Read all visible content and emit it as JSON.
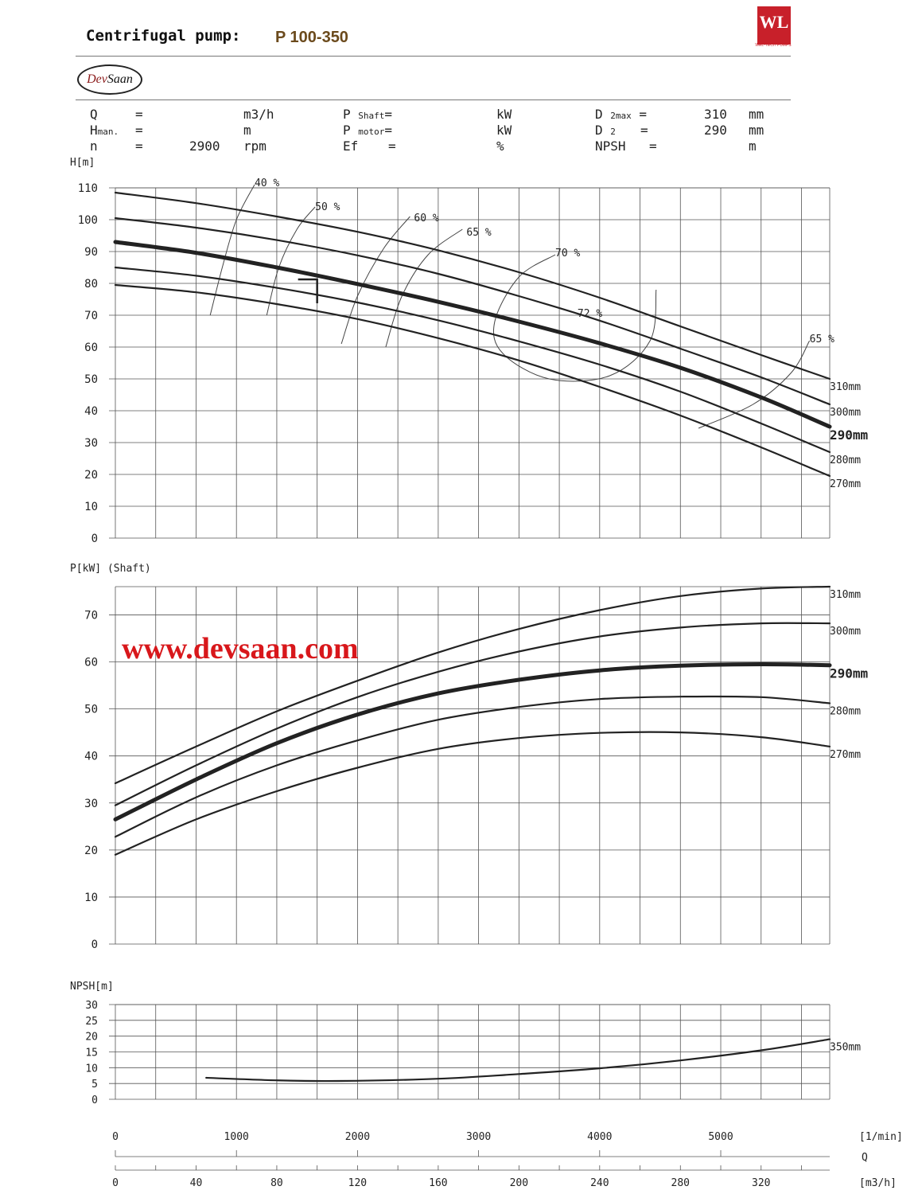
{
  "header": {
    "title_label": "Centrifugal pump:",
    "model": "P 100-350",
    "brand_mark": "WL",
    "brand_caption": "WEL-TECH PUMPS",
    "dev_logo_dev": "Dev",
    "dev_logo_saan": "Saan",
    "watermark": "www.devsaan.com"
  },
  "params": {
    "q": {
      "label": "Q",
      "eq": "=",
      "value": "",
      "unit": "m3/h"
    },
    "h": {
      "label": "H",
      "sub": "man.",
      "eq": "=",
      "value": "",
      "unit": "m"
    },
    "n": {
      "label": "n",
      "eq": "=",
      "value": "2900",
      "unit": "rpm"
    },
    "p_shaft": {
      "label": "P",
      "sub": "Shaft",
      "eq": "=",
      "value": "",
      "unit": "kW"
    },
    "p_motor": {
      "label": "P",
      "sub": "motor",
      "eq": "=",
      "value": "",
      "unit": "kW"
    },
    "ef": {
      "label": "Ef",
      "eq": "=",
      "value": "",
      "unit": "%"
    },
    "d2max": {
      "label": "D",
      "sup": "2max",
      "eq": "=",
      "value": "310",
      "unit": "mm"
    },
    "d2": {
      "label": "D",
      "sub": "2",
      "eq": "=",
      "value": "290",
      "unit": "mm"
    },
    "npsh": {
      "label": "NPSH",
      "eq": "=",
      "value": "",
      "unit": "m"
    }
  },
  "colors": {
    "ink": "#222222",
    "grid": "#555555",
    "watermark": "#d8171b",
    "brand": "#c8202a",
    "model": "#6b4a1c"
  },
  "chart_data": [
    {
      "type": "line",
      "name": "head",
      "ylabel": "H[m]",
      "xlim": [
        0,
        354
      ],
      "ylim": [
        0,
        110
      ],
      "yticks": [
        0,
        10,
        20,
        30,
        40,
        50,
        60,
        70,
        80,
        90,
        100,
        110
      ],
      "grid": true,
      "series": [
        {
          "name": "310mm",
          "bold": false,
          "x": [
            0,
            40,
            80,
            120,
            160,
            200,
            240,
            280,
            320,
            354
          ],
          "y": [
            108.5,
            105.2,
            101.0,
            96.2,
            90.4,
            83.5,
            75.5,
            66.5,
            57.5,
            50.0
          ]
        },
        {
          "name": "300mm",
          "bold": false,
          "x": [
            0,
            40,
            80,
            120,
            160,
            200,
            240,
            280,
            320,
            354
          ],
          "y": [
            100.5,
            97.5,
            93.6,
            88.8,
            83.0,
            76.0,
            68.3,
            59.5,
            50.5,
            42.0
          ]
        },
        {
          "name": "290mm",
          "bold": true,
          "x": [
            0,
            40,
            80,
            120,
            160,
            200,
            240,
            280,
            320,
            354
          ],
          "y": [
            93.0,
            89.6,
            85.0,
            79.8,
            74.2,
            68.0,
            61.2,
            53.5,
            44.2,
            35.0
          ]
        },
        {
          "name": "280mm",
          "bold": false,
          "x": [
            0,
            40,
            80,
            120,
            160,
            200,
            240,
            280,
            320,
            354
          ],
          "y": [
            85.0,
            82.4,
            78.6,
            74.0,
            68.4,
            61.8,
            54.5,
            46.0,
            36.0,
            27.0
          ]
        },
        {
          "name": "270mm",
          "bold": false,
          "x": [
            0,
            40,
            80,
            120,
            160,
            200,
            240,
            280,
            320,
            354
          ],
          "y": [
            79.5,
            77.2,
            73.5,
            68.8,
            62.8,
            55.8,
            47.5,
            38.5,
            28.5,
            19.5
          ]
        }
      ],
      "efficiency_labels": [
        {
          "text": "40 %",
          "x": 69,
          "y": 110.5
        },
        {
          "text": "50 %",
          "x": 99,
          "y": 103.0
        },
        {
          "text": "60 %",
          "x": 148,
          "y": 99.5
        },
        {
          "text": "65 %",
          "x": 174,
          "y": 95.0
        },
        {
          "text": "70 %",
          "x": 218,
          "y": 88.5
        },
        {
          "text": "72 %",
          "x": 229,
          "y": 69.5
        },
        {
          "text": "65 %",
          "x": 344,
          "y": 61.5
        }
      ],
      "efficiency_contours": [
        {
          "x": [
            47,
            53,
            60,
            69
          ],
          "y": [
            70,
            85,
            100,
            111
          ]
        },
        {
          "x": [
            75,
            81,
            90,
            99
          ],
          "y": [
            70,
            85,
            97,
            104
          ]
        },
        {
          "x": [
            112,
            120,
            133,
            146
          ],
          "y": [
            61,
            76,
            91,
            101
          ]
        },
        {
          "x": [
            134,
            142,
            155,
            172
          ],
          "y": [
            60,
            76,
            89,
            97
          ]
        },
        {
          "x": [
            218,
            200,
            188,
            192,
            215,
            245,
            265,
            268
          ],
          "y": [
            89,
            82,
            68,
            58,
            50,
            51,
            62,
            78
          ]
        },
        {
          "x": [
            289,
            316,
            335,
            344
          ],
          "y": [
            34.5,
            42,
            52,
            62
          ]
        }
      ],
      "annotation_marker": {
        "x": 100,
        "y": 80
      }
    },
    {
      "type": "line",
      "name": "shaft power",
      "ylabel": "P[kW] (Shaft)",
      "xlim": [
        0,
        354
      ],
      "ylim": [
        0,
        76
      ],
      "yticks": [
        0,
        10,
        20,
        30,
        40,
        50,
        60,
        70
      ],
      "grid": true,
      "series": [
        {
          "name": "310mm",
          "bold": false,
          "x": [
            0,
            40,
            80,
            120,
            160,
            200,
            240,
            280,
            320,
            354
          ],
          "y": [
            34.2,
            42.0,
            49.5,
            56.0,
            62.0,
            67.0,
            71.0,
            74.0,
            75.6,
            76.0
          ]
        },
        {
          "name": "300mm",
          "bold": false,
          "x": [
            0,
            40,
            80,
            120,
            160,
            200,
            240,
            280,
            320,
            354
          ],
          "y": [
            29.5,
            38.0,
            45.8,
            52.5,
            57.9,
            62.2,
            65.4,
            67.3,
            68.2,
            68.2
          ]
        },
        {
          "name": "290mm",
          "bold": true,
          "x": [
            0,
            40,
            80,
            120,
            160,
            200,
            240,
            280,
            320,
            354
          ],
          "y": [
            26.5,
            35.0,
            42.7,
            48.8,
            53.3,
            56.2,
            58.2,
            59.2,
            59.5,
            59.3
          ]
        },
        {
          "name": "280mm",
          "bold": false,
          "x": [
            0,
            40,
            80,
            120,
            160,
            200,
            240,
            280,
            320,
            354
          ],
          "y": [
            22.8,
            31.2,
            38.0,
            43.3,
            47.7,
            50.4,
            52.1,
            52.6,
            52.5,
            51.2
          ]
        },
        {
          "name": "270mm",
          "bold": false,
          "x": [
            0,
            40,
            80,
            120,
            160,
            200,
            240,
            280,
            320,
            354
          ],
          "y": [
            19.0,
            26.5,
            32.5,
            37.5,
            41.5,
            43.8,
            44.9,
            45.0,
            44.0,
            42.0
          ]
        }
      ]
    },
    {
      "type": "line",
      "name": "npsh",
      "ylabel": "NPSH[m]",
      "xlim": [
        0,
        354
      ],
      "ylim": [
        0,
        30
      ],
      "yticks": [
        0,
        5,
        10,
        15,
        20,
        25,
        30
      ],
      "grid": true,
      "series": [
        {
          "name": "350mm",
          "bold": false,
          "x": [
            45,
            80,
            110,
            160,
            200,
            240,
            280,
            320,
            354
          ],
          "y": [
            6.8,
            6.0,
            5.8,
            6.5,
            8.0,
            9.8,
            12.3,
            15.5,
            19.0
          ]
        }
      ]
    }
  ],
  "x_axes": {
    "rpm_ticks": [
      0,
      1000,
      2000,
      3000,
      4000,
      5000
    ],
    "rpm_unit": "[1/min]",
    "q_label": "Q",
    "m3h_ticks": [
      0,
      40,
      80,
      120,
      160,
      200,
      240,
      280,
      320
    ],
    "m3h_unit": "[m3/h]"
  }
}
